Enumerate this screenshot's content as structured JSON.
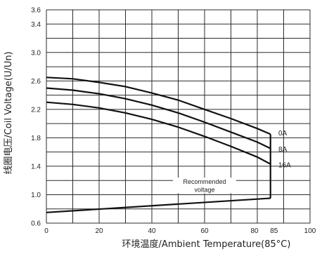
{
  "chart_data": {
    "type": "line",
    "xlabel": "环境温度/Ambient Temperature(85°C)",
    "ylabel": "线圈电压/Coil Voltage(U/Un)",
    "xlim": [
      0,
      100
    ],
    "ylim": [
      0.6,
      3.6
    ],
    "x_ticks": [
      {
        "value": 0,
        "label": "0"
      },
      {
        "value": 20,
        "label": "20"
      },
      {
        "value": 40,
        "label": "40"
      },
      {
        "value": 60,
        "label": "60"
      },
      {
        "value": 80,
        "label": "80"
      },
      {
        "value": 85,
        "label": "85"
      },
      {
        "value": 100,
        "label": "100"
      }
    ],
    "y_ticks": [
      0.6,
      1.0,
      1.4,
      1.8,
      2.2,
      2.6,
      3.0,
      3.4,
      3.6
    ],
    "y_tick_labels": [
      "0.6",
      "1.0",
      "1.4",
      "1.8",
      "2.2",
      "2.6",
      "3.0",
      "3.4",
      "3.6"
    ],
    "grid": true,
    "series": [
      {
        "name": "0A",
        "x": [
          0,
          10,
          20,
          30,
          40,
          50,
          60,
          70,
          80,
          85
        ],
        "y": [
          2.65,
          2.63,
          2.58,
          2.52,
          2.43,
          2.33,
          2.2,
          2.07,
          1.93,
          1.85
        ]
      },
      {
        "name": "8A",
        "x": [
          0,
          10,
          20,
          30,
          40,
          50,
          60,
          70,
          80,
          85
        ],
        "y": [
          2.5,
          2.47,
          2.42,
          2.35,
          2.26,
          2.15,
          2.02,
          1.88,
          1.74,
          1.65
        ]
      },
      {
        "name": "16A",
        "x": [
          0,
          10,
          20,
          30,
          40,
          50,
          60,
          70,
          80,
          85
        ],
        "y": [
          2.3,
          2.27,
          2.22,
          2.15,
          2.06,
          1.95,
          1.82,
          1.68,
          1.53,
          1.43
        ]
      },
      {
        "name": "",
        "x": [
          0,
          85
        ],
        "y": [
          0.75,
          0.95
        ]
      }
    ],
    "max_temp_line": {
      "x": 85,
      "y_from": 0.95,
      "y_to": 1.85
    },
    "annotations": [
      {
        "text": "Recommended",
        "x": 60,
        "y": 1.18
      },
      {
        "text": "voltage",
        "x": 60,
        "y": 1.07
      }
    ],
    "curve_labels": [
      {
        "text": "0A",
        "x": 88,
        "y": 1.87
      },
      {
        "text": "8A",
        "x": 88,
        "y": 1.64
      },
      {
        "text": "16A",
        "x": 88,
        "y": 1.42
      }
    ]
  }
}
